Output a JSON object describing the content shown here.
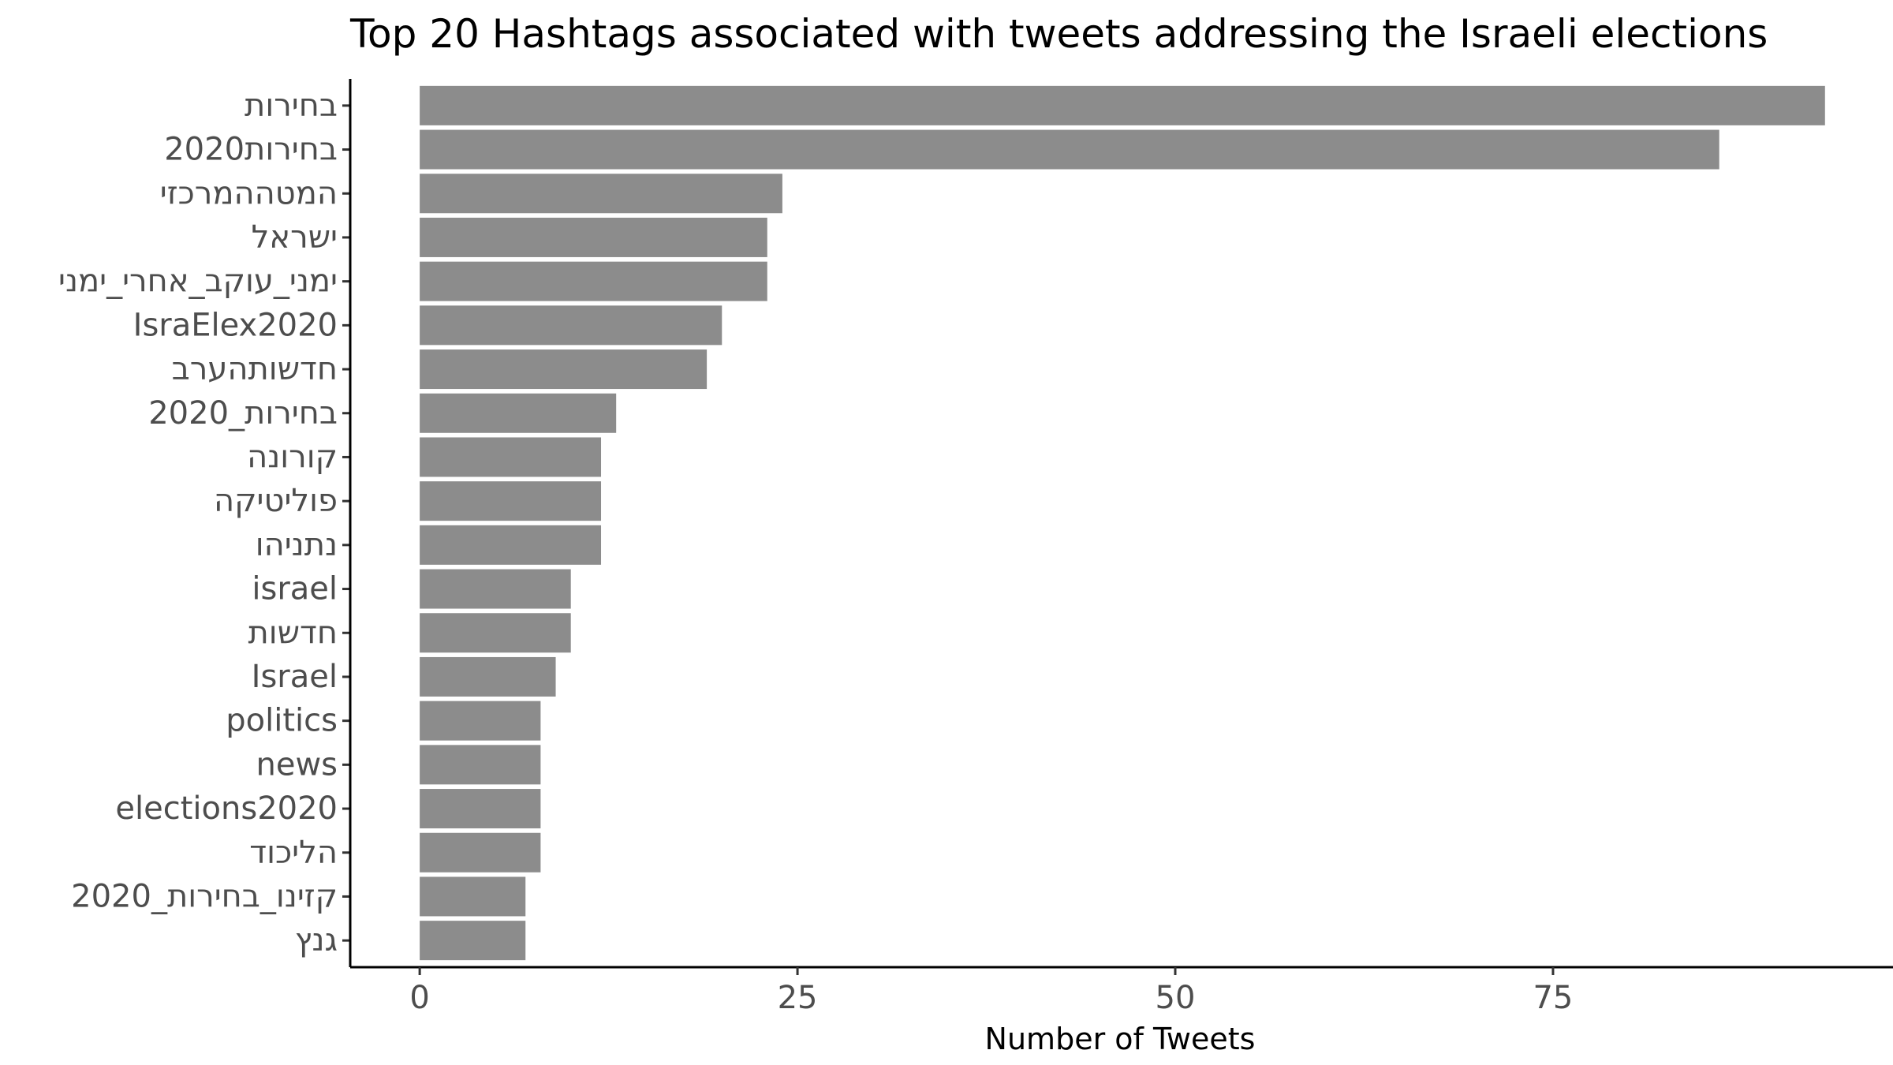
{
  "chart_data": {
    "type": "bar",
    "orientation": "horizontal",
    "title": "Top 20 Hashtags associated with tweets addressing the Israeli elections",
    "xlabel": "Number of Tweets",
    "ylabel": "",
    "categories": [
      "בחירות",
      "בחירות2020",
      "המטההמרכזי",
      "ישראל",
      "ימני_עוקב_אחרי_ימני",
      "IsraElex2020",
      "חדשותהערב",
      "בחירות_2020",
      "קורונה",
      "פוליטיקה",
      "נתניהו",
      "israel",
      "חדשות",
      "Israel",
      "politics",
      "news",
      "elections2020",
      "הליכוד",
      "קזינו_בחירות_2020",
      "גנץ"
    ],
    "values": [
      93,
      86,
      24,
      23,
      23,
      20,
      19,
      13,
      12,
      12,
      12,
      10,
      10,
      9,
      8,
      8,
      8,
      8,
      7,
      7
    ],
    "xlim": [
      -4.6,
      97.5
    ],
    "xticks": [
      0,
      25,
      50,
      75
    ],
    "bar_color": "#8c8c8c",
    "grid": false,
    "legend": "none"
  }
}
